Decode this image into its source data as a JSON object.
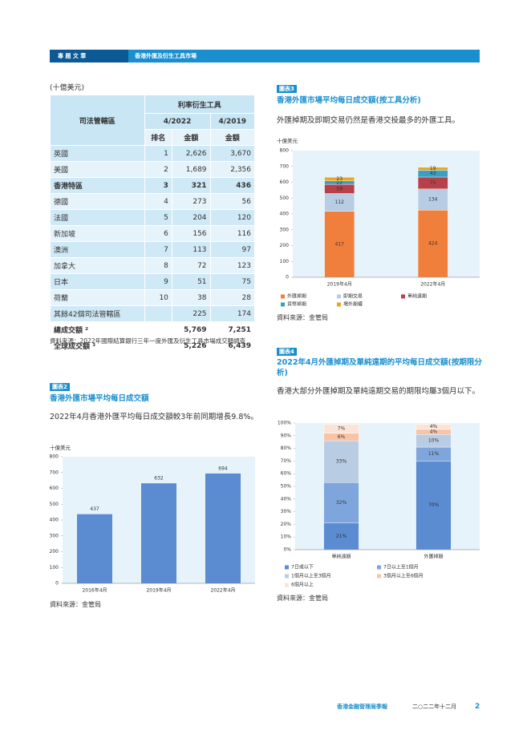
{
  "header": {
    "section": "專 題 文 章",
    "topic": "香港外匯及衍生工具市場"
  },
  "table": {
    "unit": "(十億美元)",
    "head": {
      "jurisdiction": "司法管轄區",
      "group": "利率衍生工具",
      "year1": "4/2022",
      "year2": "4/2019",
      "rank": "排名",
      "amount1": "金額",
      "amount2": "金額"
    },
    "rows": [
      {
        "name": "英國",
        "rank": "1",
        "a2022": "2,626",
        "a2019": "3,670"
      },
      {
        "name": "美國",
        "rank": "2",
        "a2022": "1,689",
        "a2019": "2,356"
      },
      {
        "name": "香港特區",
        "rank": "3",
        "a2022": "321",
        "a2019": "436",
        "bold": true
      },
      {
        "name": "德國",
        "rank": "4",
        "a2022": "273",
        "a2019": "56"
      },
      {
        "name": "法國",
        "rank": "5",
        "a2022": "204",
        "a2019": "120"
      },
      {
        "name": "新加坡",
        "rank": "6",
        "a2022": "156",
        "a2019": "116"
      },
      {
        "name": "澳洲",
        "rank": "7",
        "a2022": "113",
        "a2019": "97"
      },
      {
        "name": "加拿大",
        "rank": "8",
        "a2022": "72",
        "a2019": "123"
      },
      {
        "name": "日本",
        "rank": "9",
        "a2022": "51",
        "a2019": "75"
      },
      {
        "name": "荷蘭",
        "rank": "10",
        "a2022": "38",
        "a2019": "28"
      },
      {
        "name": "其餘42個司法管轄區",
        "a2022": "225",
        "a2019": "174"
      },
      {
        "name": "總成交額 ²",
        "a2022": "5,769",
        "a2019": "7,251",
        "bold": true,
        "total": true
      },
      {
        "name": "全球成交額 ³",
        "a2022": "5,226",
        "a2019": "6,439",
        "bold": true,
        "total": true
      }
    ],
    "source": "資料來源：2022年國際結算銀行三年一度外匯及衍生工具市場成交額調查"
  },
  "chart_data": [
    {
      "type": "bar",
      "label": "圖表2",
      "title": "香港外匯市場平均每日成交額",
      "subtitle": "2022年4月香港外匯平均每日成交額較3年前同期增長9.8%。",
      "unit": "十億美元",
      "categories": [
        "2016年4月",
        "2019年4月",
        "2022年4月"
      ],
      "values": [
        437,
        632,
        694
      ],
      "color": "#5b8bd0",
      "ylim": [
        0,
        800
      ],
      "yticks": [
        0,
        100,
        200,
        300,
        400,
        500,
        600,
        700,
        800
      ],
      "source": "資料來源：金管局"
    },
    {
      "type": "stacked_bar",
      "label": "圖表3",
      "title": "香港外匯市場平均每日成交額(按工具分析)",
      "subtitle": "外匯掉期及即期交易仍然是香港交投最多的外匯工具。",
      "unit": "十億美元",
      "categories": [
        "2019年4月",
        "2022年4月"
      ],
      "series": [
        {
          "name": "外匯掉期",
          "color": "#f07f3c",
          "values": [
            417,
            424
          ]
        },
        {
          "name": "即期交易",
          "color": "#b8cce4",
          "values": [
            112,
            134
          ]
        },
        {
          "name": "單純遠期",
          "color": "#b8404b",
          "values": [
            58,
            75
          ]
        },
        {
          "name": "貨幣掉期",
          "color": "#3a9fc0",
          "values": [
            22,
            43
          ]
        },
        {
          "name": "場外期權",
          "color": "#e8a820",
          "values": [
            23,
            19
          ]
        }
      ],
      "ylim": [
        0,
        800
      ],
      "yticks": [
        0,
        100,
        200,
        300,
        400,
        500,
        600,
        700,
        800
      ],
      "source": "資料來源：金管局"
    },
    {
      "type": "stacked_bar",
      "label": "圖表4",
      "title": "2022年4月外匯掉期及單純遠期的平均每日成交額(按期限分析)",
      "subtitle": "香港大部分外匯掉期及單純遠期交易的期限均屬3個月以下。",
      "categories": [
        "單純遠期",
        "外匯掉期"
      ],
      "series": [
        {
          "name": "7日或以下",
          "color": "#5b8bd0",
          "values": [
            21,
            70
          ],
          "value_labels": [
            "21%",
            "70%"
          ]
        },
        {
          "name": "7日以上至1個月",
          "color": "#7fa6dc",
          "values": [
            32,
            11
          ],
          "value_labels": [
            "32%",
            "11%"
          ]
        },
        {
          "name": "1個月以上至3個月",
          "color": "#b8cce4",
          "values": [
            33,
            10
          ],
          "value_labels": [
            "33%",
            "10%"
          ]
        },
        {
          "name": "3個月以上至6個月",
          "color": "#f7c4a8",
          "values": [
            6,
            4
          ],
          "value_labels": [
            "6%",
            "4%"
          ]
        },
        {
          "name": "6個月以上",
          "color": "#fde3d5",
          "values": [
            7,
            4
          ],
          "value_labels": [
            "7%",
            "4%"
          ]
        }
      ],
      "ylim": [
        0,
        100
      ],
      "yticks": [
        {
          "value": 0,
          "label": "0%"
        },
        {
          "value": 10,
          "label": "10%"
        },
        {
          "value": 20,
          "label": "20%"
        },
        {
          "value": 30,
          "label": "30%"
        },
        {
          "value": 40,
          "label": "40%"
        },
        {
          "value": 50,
          "label": "50%"
        },
        {
          "value": 60,
          "label": "60%"
        },
        {
          "value": 70,
          "label": "70%"
        },
        {
          "value": 80,
          "label": "80%"
        },
        {
          "value": 90,
          "label": "90%"
        },
        {
          "value": 100,
          "label": "100%"
        }
      ],
      "source": "資料來源：金管局"
    }
  ],
  "footer": {
    "publication": "香港金融管理局季報",
    "date": "二○二二年十二月",
    "page": "2"
  }
}
